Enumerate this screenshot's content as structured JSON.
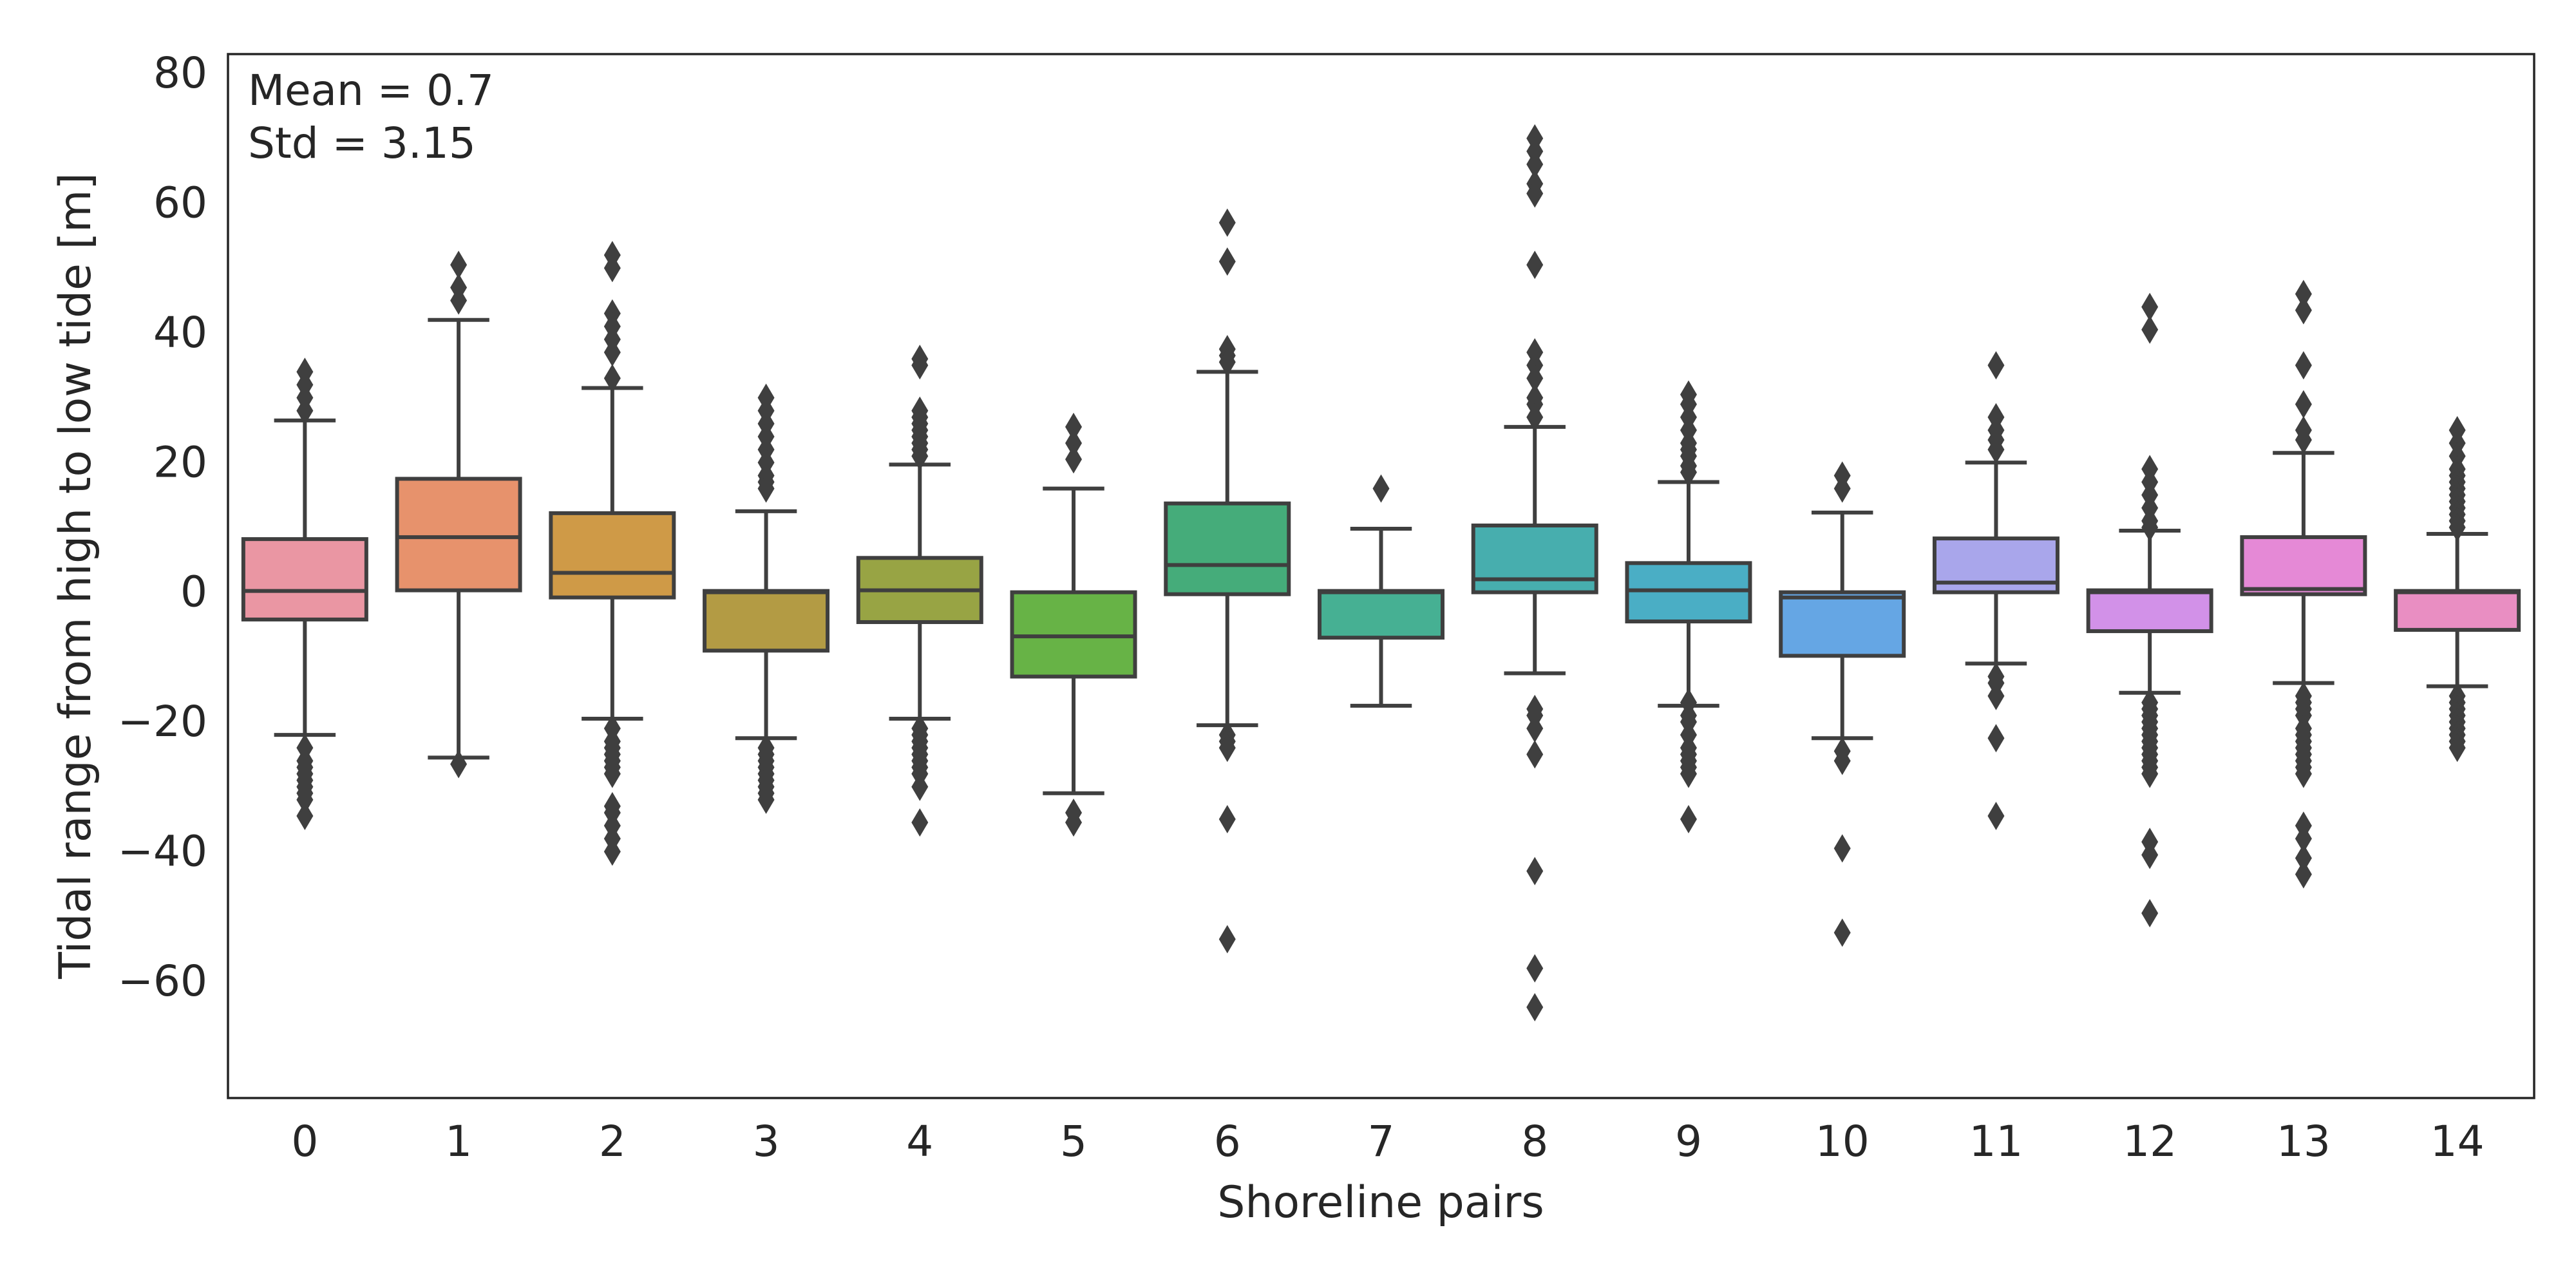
{
  "chart_data": {
    "type": "box",
    "title": "",
    "xlabel": "Shoreline pairs",
    "ylabel": "Tidal range from high to low tide [m]",
    "ylim": [
      -78,
      83
    ],
    "yticks": [
      80,
      60,
      40,
      20,
      0,
      -20,
      -40,
      -60
    ],
    "grid": false,
    "annotation_lines": [
      "Mean = 0.7",
      "Std = 3.15"
    ],
    "annotation_position": "top-left",
    "whisker_color": "#3f3f3f",
    "categories": [
      "0",
      "1",
      "2",
      "3",
      "4",
      "5",
      "6",
      "7",
      "8",
      "9",
      "10",
      "11",
      "12",
      "13",
      "14"
    ],
    "boxes": [
      {
        "category": "0",
        "color": "#ea96a3",
        "q1": -4.2,
        "median": 0.2,
        "q3": 8.2,
        "whisker_low": -22,
        "whisker_high": 26.5,
        "outliers": [
          34,
          32,
          30,
          28,
          -24,
          -26,
          -27,
          -28,
          -29,
          -30,
          -31,
          -32,
          -34.5
        ]
      },
      {
        "category": "1",
        "color": "#e7926c",
        "q1": 0.3,
        "median": 8.5,
        "q3": 17.5,
        "whisker_low": -25.5,
        "whisker_high": 42,
        "outliers": [
          50.5,
          47,
          45,
          -26.5
        ]
      },
      {
        "category": "2",
        "color": "#cf9a47",
        "q1": -0.8,
        "median": 3.0,
        "q3": 12.2,
        "whisker_low": -19.5,
        "whisker_high": 31.5,
        "outliers": [
          52,
          50,
          43,
          41,
          39,
          37,
          33,
          -21,
          -23,
          -24,
          -25,
          -26,
          -27,
          -28,
          -33,
          -34,
          -36,
          -38,
          -40
        ]
      },
      {
        "category": "3",
        "color": "#b39b44",
        "q1": -9.0,
        "median": 0.0,
        "q3": 0.2,
        "whisker_low": -22.5,
        "whisker_high": 12.5,
        "outliers": [
          30,
          28,
          26,
          24,
          22,
          20,
          18,
          17,
          16,
          -24,
          -25,
          -26,
          -27,
          -28,
          -29,
          -30,
          -31,
          -32
        ]
      },
      {
        "category": "4",
        "color": "#98a444",
        "q1": -4.6,
        "median": 0.3,
        "q3": 5.3,
        "whisker_low": -19.5,
        "whisker_high": 19.7,
        "outliers": [
          36,
          35,
          28,
          27,
          26,
          25,
          24,
          23,
          22,
          21,
          -21,
          -22,
          -23,
          -24,
          -25,
          -26,
          -27,
          -28,
          -30,
          -35.5
        ]
      },
      {
        "category": "5",
        "color": "#67b346",
        "q1": -13.0,
        "median": -6.8,
        "q3": 0.0,
        "whisker_low": -31,
        "whisker_high": 16,
        "outliers": [
          25.5,
          23,
          20.5,
          -34,
          -35.5
        ]
      },
      {
        "category": "6",
        "color": "#45ac7a",
        "q1": -0.3,
        "median": 4.2,
        "q3": 13.7,
        "whisker_low": -20.5,
        "whisker_high": 34,
        "outliers": [
          57,
          51,
          37.5,
          36.5,
          35.5,
          -22,
          -23,
          -24,
          -35,
          -53.5
        ]
      },
      {
        "category": "7",
        "color": "#46b093",
        "q1": -7.0,
        "median": 0.0,
        "q3": 0.2,
        "whisker_low": -17.5,
        "whisker_high": 9.8,
        "outliers": [
          16
        ]
      },
      {
        "category": "8",
        "color": "#47aeae",
        "q1": 0.0,
        "median": 2.0,
        "q3": 10.3,
        "whisker_low": -12.5,
        "whisker_high": 25.5,
        "outliers": [
          70,
          68,
          66,
          63,
          61.5,
          50.5,
          37,
          35,
          33,
          30,
          29,
          27,
          -18,
          -19,
          -21,
          -25,
          -43,
          -58,
          -64
        ]
      },
      {
        "category": "9",
        "color": "#4aaec5",
        "q1": -4.5,
        "median": 0.3,
        "q3": 4.5,
        "whisker_low": -17.5,
        "whisker_high": 17,
        "outliers": [
          30.5,
          29,
          27,
          25,
          23,
          22,
          21,
          19.5,
          18.5,
          -17,
          -19,
          -20,
          -22,
          -24,
          -25,
          -26,
          -27,
          -28,
          -35
        ]
      },
      {
        "category": "10",
        "color": "#65a6e4",
        "q1": -9.8,
        "median": -0.8,
        "q3": 0.0,
        "whisker_low": -22.5,
        "whisker_high": 12.3,
        "outliers": [
          18,
          16,
          -24.5,
          -26,
          -39.5,
          -52.5
        ]
      },
      {
        "category": "11",
        "color": "#a9a6eb",
        "q1": 0.0,
        "median": 1.5,
        "q3": 8.3,
        "whisker_low": -11,
        "whisker_high": 20,
        "outliers": [
          35,
          27,
          25,
          23.5,
          22,
          -13,
          -14,
          -16,
          -22.5,
          -34.5
        ]
      },
      {
        "category": "12",
        "color": "#d291e8",
        "q1": -6.0,
        "median": 0.0,
        "q3": 0.3,
        "whisker_low": -15.5,
        "whisker_high": 9.5,
        "outliers": [
          44,
          40.5,
          19,
          17,
          15,
          13,
          11,
          10,
          -17,
          -18,
          -19,
          -20,
          -21,
          -22,
          -23,
          -24,
          -25,
          -26,
          -27,
          -28,
          -38.5,
          -40.5,
          -49.5
        ]
      },
      {
        "category": "13",
        "color": "#e589d6",
        "q1": -0.3,
        "median": 0.5,
        "q3": 8.5,
        "whisker_low": -14,
        "whisker_high": 21.5,
        "outliers": [
          46,
          43.5,
          35,
          29,
          25,
          23.5,
          -16,
          -17,
          -18,
          -19,
          -21,
          -22,
          -23,
          -24,
          -25,
          -26,
          -27,
          -28,
          -36,
          -38,
          -41,
          -43.5
        ]
      },
      {
        "category": "14",
        "color": "#e98ec2",
        "q1": -5.8,
        "median": 0.0,
        "q3": 0.2,
        "whisker_low": -14.5,
        "whisker_high": 9,
        "outliers": [
          25,
          23,
          21,
          19,
          18,
          17,
          16,
          15,
          14,
          13,
          12,
          11,
          10,
          -16,
          -17,
          -18,
          -19,
          -20,
          -21,
          -22,
          -23,
          -24
        ]
      }
    ]
  }
}
